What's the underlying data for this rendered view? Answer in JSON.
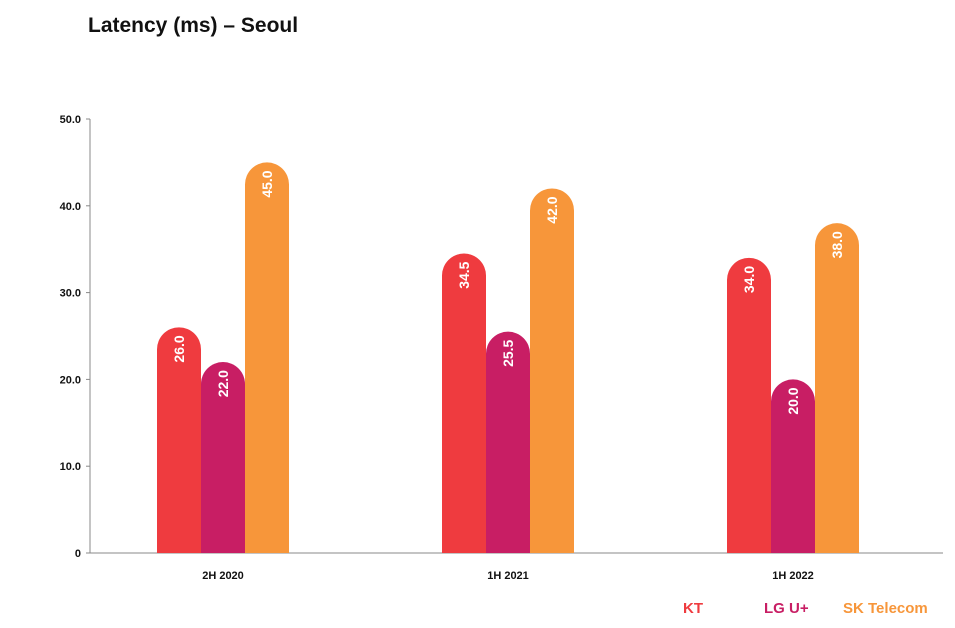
{
  "chart_data": {
    "type": "bar",
    "title": "Latency (ms) – Seoul",
    "categories": [
      "2H 2020",
      "1H 2021",
      "1H 2022"
    ],
    "series": [
      {
        "name": "KT",
        "color": "#ef3b3f",
        "values": [
          26.0,
          34.5,
          34.0
        ]
      },
      {
        "name": "LG U+",
        "color": "#c81e64",
        "values": [
          22.0,
          25.5,
          20.0
        ]
      },
      {
        "name": "SK Telecom",
        "color": "#f7963a",
        "values": [
          45.0,
          42.0,
          38.0
        ]
      }
    ],
    "yticks": [
      "50.0",
      "40.0",
      "30.0",
      "20.0",
      "10.0",
      "0"
    ],
    "ylim": [
      0,
      50
    ],
    "grid": false,
    "legend_position": "bottom-right",
    "data_labels": true
  }
}
